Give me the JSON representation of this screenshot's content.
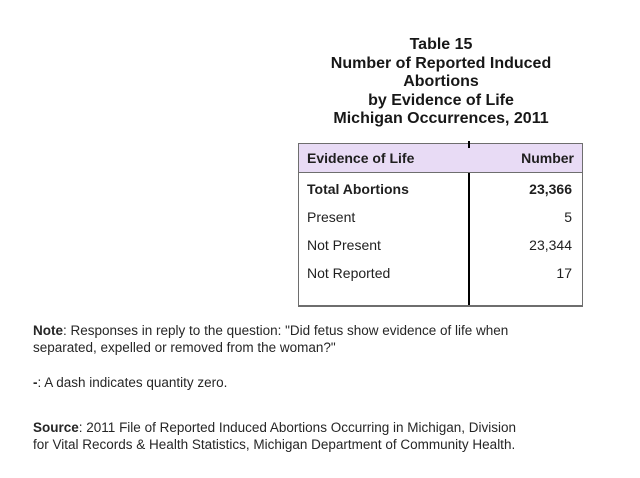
{
  "title": {
    "lines": [
      "Table 15",
      "Number of Reported Induced",
      "Abortions",
      "by Evidence of Life",
      "Michigan Occurrences, 2011"
    ]
  },
  "table": {
    "header": {
      "col1": "Evidence of Life",
      "col2": "Number"
    },
    "rows": [
      {
        "label": "Total Abortions",
        "value": "23,366"
      },
      {
        "label": "Present",
        "value": "5"
      },
      {
        "label": "Not Present",
        "value": "23,344"
      },
      {
        "label": "Not Reported",
        "value": "17"
      }
    ],
    "header_bg": "#E8DBF5",
    "divider_color": "#000000",
    "border_color": "#6e6e6e"
  },
  "notes": {
    "note_label": "Note",
    "note_line1": ": Responses in reply to the question: \"Did fetus show evidence of life when",
    "note_line2": "separated, expelled or removed from the woman?\"",
    "dash_label": "-",
    "dash_text": ": A dash indicates quantity zero.",
    "source_label": "Source",
    "source_line1": ": 2011 File of Reported Induced Abortions Occurring in Michigan, Division",
    "source_line2": "for Vital Records & Health Statistics, Michigan Department of Community Health."
  }
}
